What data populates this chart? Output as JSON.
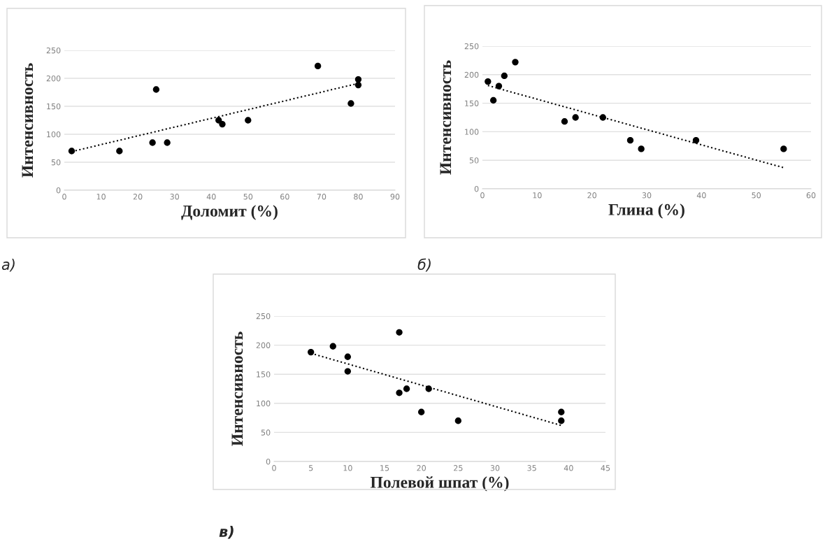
{
  "chart_data": [
    {
      "type": "scatter",
      "xlabel": "Доломит (%)",
      "ylabel": "Интенсивность",
      "annotations": [
        "а)"
      ],
      "xlim": [
        0,
        90
      ],
      "xticks": [
        0,
        10,
        20,
        30,
        40,
        50,
        60,
        70,
        80,
        90
      ],
      "ylim": [
        0,
        250
      ],
      "yticks": [
        0,
        50,
        100,
        150,
        200,
        250
      ],
      "grid": "y",
      "marker": "circle",
      "series": [
        {
          "color": "#000000",
          "x": [
            2,
            15,
            24,
            25,
            28,
            42,
            43,
            50,
            69,
            78,
            80,
            80
          ],
          "values": [
            70,
            70,
            85,
            180,
            85,
            125,
            118,
            125,
            222,
            155,
            198,
            188
          ]
        },
        {
          "type": "line",
          "color": "#000000",
          "line_style": "dotted",
          "marker": "none",
          "x": [
            2,
            80
          ],
          "values": [
            69,
            191
          ]
        }
      ]
    },
    {
      "type": "scatter",
      "xlabel": "Глина (%)",
      "ylabel": "Интенсивность",
      "annotations": [
        "б)"
      ],
      "xlim": [
        0,
        60
      ],
      "xticks": [
        0,
        10,
        20,
        30,
        40,
        50,
        60
      ],
      "ylim": [
        0,
        250
      ],
      "yticks": [
        0,
        50,
        100,
        150,
        200,
        250
      ],
      "grid": "y",
      "marker": "circle",
      "series": [
        {
          "color": "#000000",
          "x": [
            1,
            2,
            3,
            4,
            6,
            15,
            17,
            22,
            27,
            29,
            39,
            55
          ],
          "values": [
            188,
            155,
            180,
            198,
            222,
            118,
            125,
            125,
            85,
            70,
            85,
            70
          ]
        },
        {
          "type": "line",
          "color": "#000000",
          "line_style": "dotted",
          "marker": "none",
          "x": [
            1,
            55
          ],
          "values": [
            181,
            37
          ]
        }
      ]
    },
    {
      "type": "scatter",
      "xlabel": "Полевой шпат (%)",
      "ylabel": "Интенсивность",
      "annotations": [
        "в)"
      ],
      "xlim": [
        0,
        45
      ],
      "xticks": [
        0,
        5,
        10,
        15,
        20,
        25,
        30,
        35,
        40,
        45
      ],
      "ylim": [
        0,
        250
      ],
      "yticks": [
        0,
        50,
        100,
        150,
        200,
        250
      ],
      "grid": "y",
      "marker": "circle",
      "series": [
        {
          "color": "#000000",
          "x": [
            5,
            8,
            10,
            10,
            17,
            17,
            18,
            20,
            21,
            25,
            39,
            39
          ],
          "values": [
            188,
            198,
            180,
            155,
            222,
            118,
            125,
            85,
            125,
            70,
            85,
            70
          ]
        },
        {
          "type": "line",
          "color": "#000000",
          "line_style": "dotted",
          "marker": "none",
          "x": [
            5,
            39
          ],
          "values": [
            186,
            62
          ]
        }
      ]
    }
  ]
}
